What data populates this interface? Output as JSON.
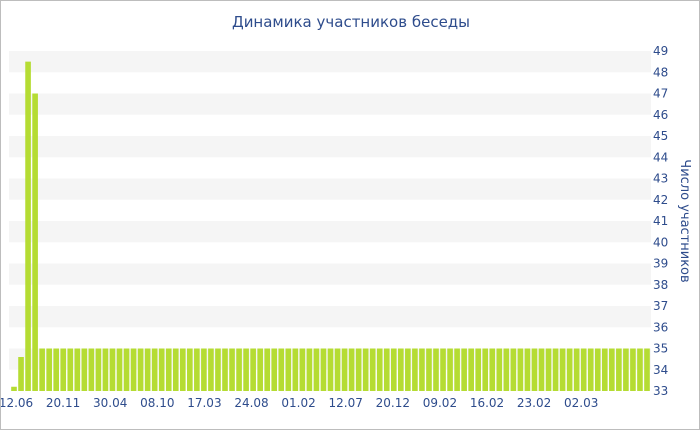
{
  "chart_data": {
    "type": "bar",
    "title": "Динамика участников беседы",
    "ylabel": "Число участников",
    "y_axis_side": "right",
    "ylim": [
      33,
      49
    ],
    "yticks": [
      33,
      34,
      35,
      36,
      37,
      38,
      39,
      40,
      41,
      42,
      43,
      44,
      45,
      46,
      47,
      48,
      49
    ],
    "x_tick_labels": [
      "12.06",
      "20.11",
      "30.04",
      "08.10",
      "17.03",
      "24.08",
      "01.02",
      "12.07",
      "20.12",
      "09.02",
      "16.02",
      "23.02",
      "02.03"
    ],
    "values": [
      33.2,
      34.6,
      48.5,
      47,
      35,
      35,
      35,
      35,
      35,
      35,
      35,
      35,
      35,
      35,
      35,
      35,
      35,
      35,
      35,
      35,
      35,
      35,
      35,
      35,
      35,
      35,
      35,
      35,
      35,
      35,
      35,
      35,
      35,
      35,
      35,
      35,
      35,
      35,
      35,
      35,
      35,
      35,
      35,
      35,
      35,
      35,
      35,
      35,
      35,
      35,
      35,
      35,
      35,
      35,
      35,
      35,
      35,
      35,
      35,
      35,
      35,
      35,
      35,
      35,
      35,
      35,
      35,
      35,
      35,
      35,
      35,
      35,
      35,
      35,
      35,
      35,
      35,
      35,
      35,
      35,
      35,
      35,
      35,
      35,
      35,
      35,
      35,
      35,
      35,
      35,
      35
    ],
    "grid": "horizontal alternating bands",
    "colors": {
      "bar": "#b5dc33",
      "text": "#2e4c8c",
      "band": "#f5f5f5"
    }
  }
}
